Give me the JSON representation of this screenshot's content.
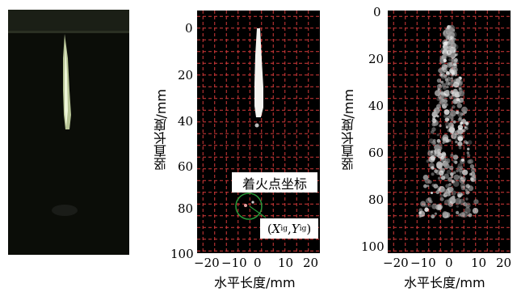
{
  "panels": {
    "photo": {
      "description_color": "#0b0d08"
    },
    "middle": {
      "xlabel": "水平长度/mm",
      "ylabel": "竖直长度/mm",
      "xticks": [
        "−20",
        "−10",
        "0",
        "10",
        "20"
      ],
      "yticks": [
        "0",
        "20",
        "40",
        "60",
        "80",
        "100"
      ],
      "annotation_label": "着火点坐标",
      "coord_label_open": "(",
      "coord_x": "X",
      "coord_x_sub": "ig",
      "coord_sep": ",",
      "coord_y": "Y",
      "coord_y_sub": "ig",
      "coord_label_close": ")"
    },
    "right": {
      "xlabel": "水平长度/mm",
      "ylabel": "竖直长度/mm",
      "xticks": [
        "−20",
        "−10",
        "0",
        "10",
        "20"
      ],
      "yticks": [
        "0",
        "20",
        "40",
        "60",
        "80",
        "100"
      ]
    }
  },
  "colors": {
    "grid": "#d63a3a",
    "background": "#000000",
    "flame": "#f4f4f0",
    "marker": "#2a9a3a"
  }
}
